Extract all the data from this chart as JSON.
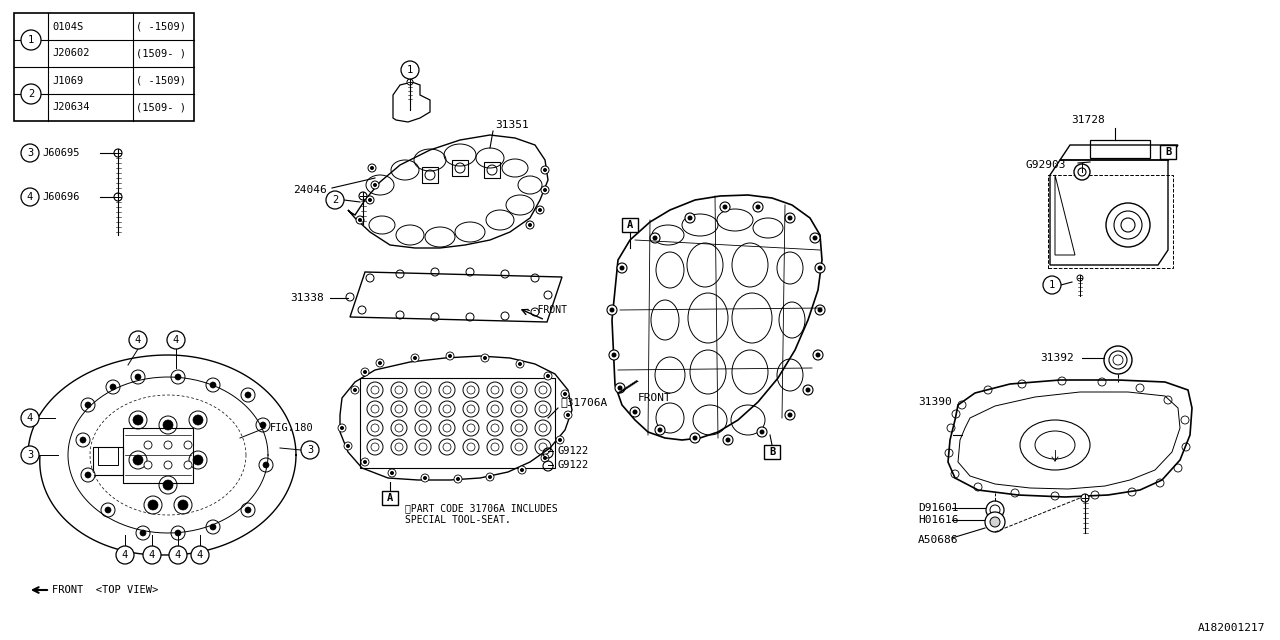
{
  "bg_color": "#ffffff",
  "fig_width": 12.8,
  "fig_height": 6.4,
  "dpi": 100,
  "watermark": "A182001217",
  "table_rows": [
    [
      "0104S",
      "( -1509)"
    ],
    [
      "J20602",
      "(1509- )"
    ],
    [
      "J1069",
      "( -1509)"
    ],
    [
      "J20634",
      "(1509- )"
    ]
  ],
  "bolt3_code": "J60695",
  "bolt4_code": "J60696",
  "note_line1": "※PART CODE 31706A INCLUDES",
  "note_line2": "SPECIAL TOOL-SEAT.",
  "watermark_text": "A182001217"
}
